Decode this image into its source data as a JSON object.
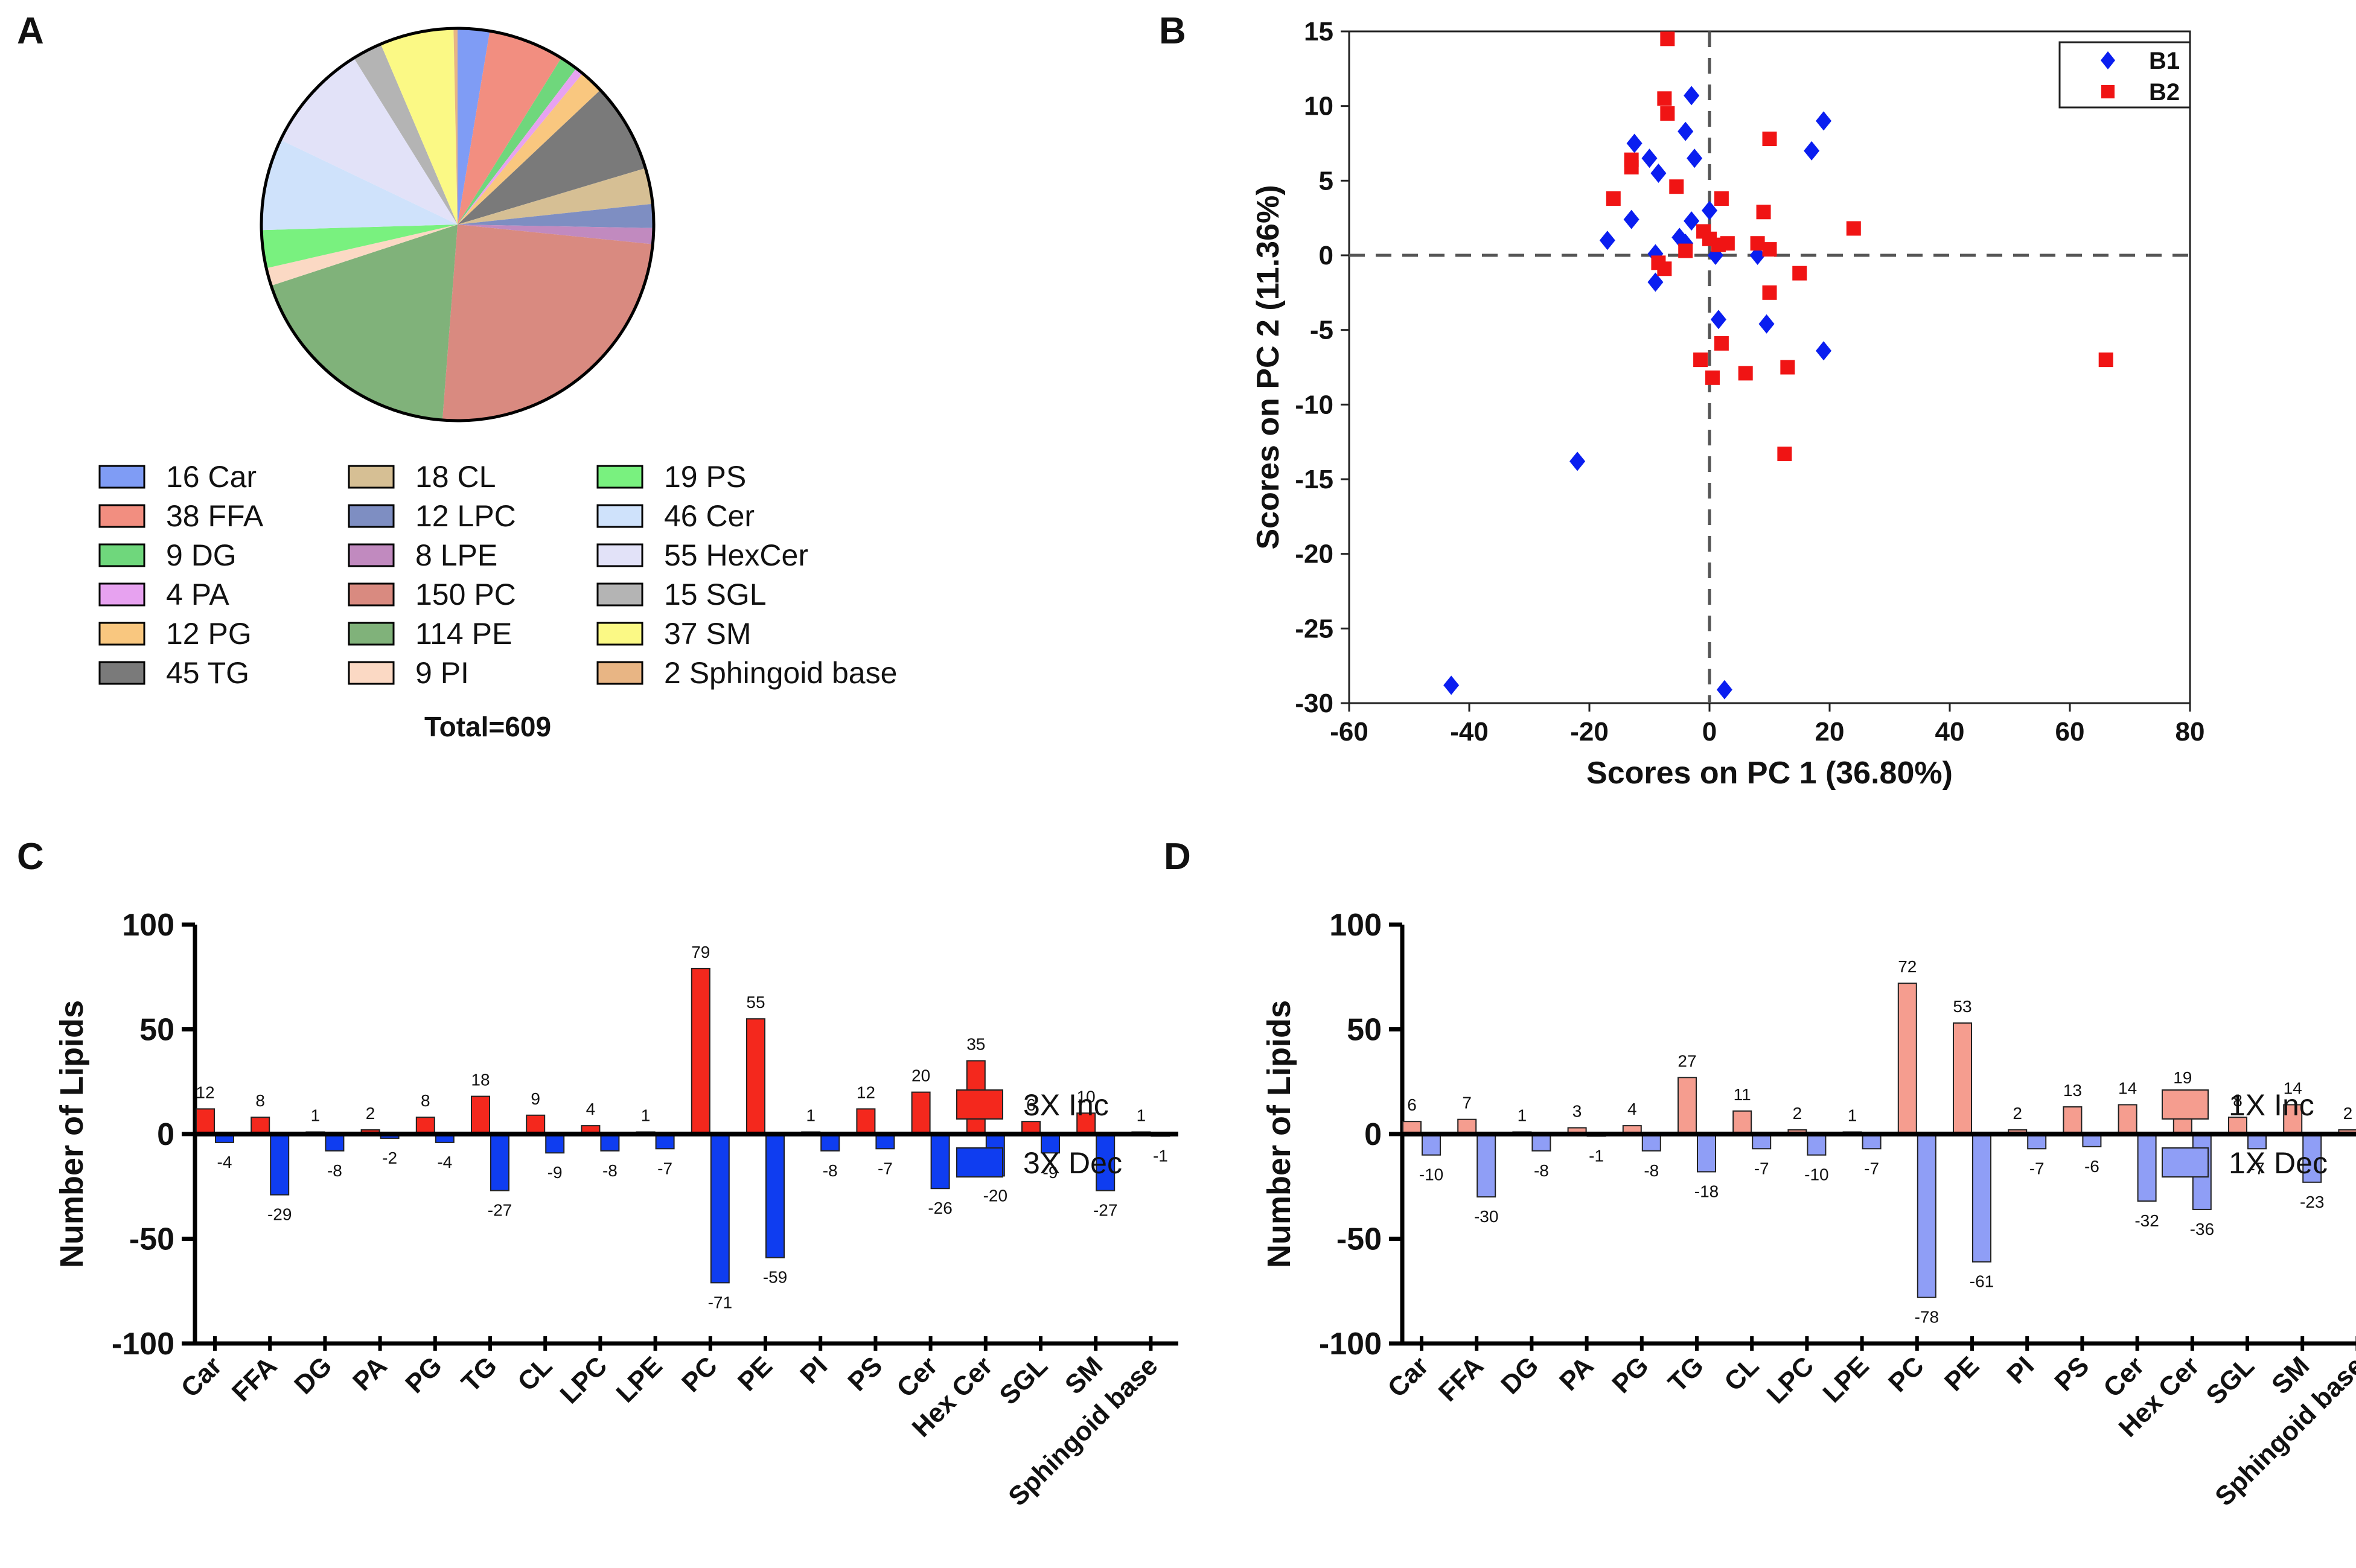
{
  "panels": {
    "a": "A",
    "b": "B",
    "c": "C",
    "d": "D"
  },
  "chart_data": [
    {
      "type": "pie",
      "panel": "A",
      "slices": [
        {
          "label": "16 Car",
          "value": 16,
          "color": "#7f9cf5"
        },
        {
          "label": "38 FFA",
          "value": 38,
          "color": "#f28e80"
        },
        {
          "label": "9 DG",
          "value": 9,
          "color": "#6fd77c"
        },
        {
          "label": "4 PA",
          "value": 4,
          "color": "#e7a2f0"
        },
        {
          "label": "12 PG",
          "value": 12,
          "color": "#f9c77f"
        },
        {
          "label": "45 TG",
          "value": 45,
          "color": "#7a7a7a"
        },
        {
          "label": "18 CL",
          "value": 18,
          "color": "#d6bf94"
        },
        {
          "label": "12 LPC",
          "value": 12,
          "color": "#7e8ec2"
        },
        {
          "label": "8 LPE",
          "value": 8,
          "color": "#c18abf"
        },
        {
          "label": "150 PC",
          "value": 150,
          "color": "#d98a80"
        },
        {
          "label": "114 PE",
          "value": 114,
          "color": "#80b27a"
        },
        {
          "label": "9 PI",
          "value": 9,
          "color": "#fbd9c4"
        },
        {
          "label": "19 PS",
          "value": 19,
          "color": "#79f17f"
        },
        {
          "label": "46 Cer",
          "value": 46,
          "color": "#cfe2fb"
        },
        {
          "label": "55 HexCer",
          "value": 55,
          "color": "#e2e2f8"
        },
        {
          "label": "15 SGL",
          "value": 15,
          "color": "#b4b4b4"
        },
        {
          "label": "37 SM",
          "value": 37,
          "color": "#fbf985"
        },
        {
          "label": "2 Sphingoid base",
          "value": 2,
          "color": "#e8b584"
        }
      ],
      "total_label": "Total=609"
    },
    {
      "type": "scatter",
      "panel": "B",
      "xlabel": "Scores on PC 1 (36.80%)",
      "ylabel": "Scores on PC 2 (11.36%)",
      "xlim": [
        -60,
        80
      ],
      "ylim": [
        -30,
        15
      ],
      "xticks": [
        -60,
        -40,
        -20,
        0,
        20,
        40,
        60,
        80
      ],
      "yticks": [
        -30,
        -25,
        -20,
        -15,
        -10,
        -5,
        0,
        5,
        10,
        15
      ],
      "series": [
        {
          "name": "B1",
          "color": "#0a1ef0",
          "marker": "diamond",
          "points": [
            [
              -43,
              -28.8
            ],
            [
              2.5,
              -29.1
            ],
            [
              -22,
              -13.8
            ],
            [
              -3,
              10.7
            ],
            [
              -4,
              8.3
            ],
            [
              19,
              9
            ],
            [
              17,
              7
            ],
            [
              -12.5,
              7.5
            ],
            [
              -10,
              6.5
            ],
            [
              -8.5,
              5.5
            ],
            [
              -2.5,
              6.5
            ],
            [
              -13,
              2.4
            ],
            [
              -3,
              2.3
            ],
            [
              0,
              3
            ],
            [
              -5,
              1.2
            ],
            [
              -4,
              0.8
            ],
            [
              -17,
              1
            ],
            [
              -9,
              0.1
            ],
            [
              1,
              0
            ],
            [
              8,
              0
            ],
            [
              -9,
              -1.8
            ],
            [
              1.5,
              -4.3
            ],
            [
              9.5,
              -4.6
            ],
            [
              19,
              -6.4
            ]
          ]
        },
        {
          "name": "B2",
          "color": "#f01414",
          "marker": "square",
          "points": [
            [
              -7,
              14.5
            ],
            [
              -7.5,
              10.5
            ],
            [
              -7,
              9.5
            ],
            [
              -13,
              6.4
            ],
            [
              -13,
              5.9
            ],
            [
              -5.5,
              4.6
            ],
            [
              -16,
              3.8
            ],
            [
              2,
              3.8
            ],
            [
              10,
              7.8
            ],
            [
              9,
              2.9
            ],
            [
              24,
              1.8
            ],
            [
              -1,
              1.6
            ],
            [
              0,
              1.1
            ],
            [
              1.5,
              0.7
            ],
            [
              3,
              0.8
            ],
            [
              -4,
              0.3
            ],
            [
              8,
              0.8
            ],
            [
              10,
              0.4
            ],
            [
              -8.5,
              -0.5
            ],
            [
              -7.5,
              -0.9
            ],
            [
              15,
              -1.2
            ],
            [
              10,
              -2.5
            ],
            [
              2,
              -5.9
            ],
            [
              -1.5,
              -7
            ],
            [
              0.5,
              -8.2
            ],
            [
              6,
              -7.9
            ],
            [
              13,
              -7.5
            ],
            [
              66,
              -7
            ],
            [
              12.5,
              -13.3
            ]
          ]
        }
      ],
      "legend_position": "top-right"
    },
    {
      "type": "bar",
      "panel": "C",
      "ylabel": "Number of Lipids",
      "ylim": [
        -100,
        100
      ],
      "yticks": [
        -100,
        -50,
        0,
        50,
        100
      ],
      "categories": [
        "Car",
        "FFA",
        "DG",
        "PA",
        "PG",
        "TG",
        "CL",
        "LPC",
        "LPE",
        "PC",
        "PE",
        "PI",
        "PS",
        "Cer",
        "Hex Cer",
        "SGL",
        "SM",
        "Sphingoid base"
      ],
      "series": [
        {
          "name": "3X Inc",
          "color": "#f4281d",
          "values": [
            12,
            8,
            1,
            2,
            8,
            18,
            9,
            4,
            1,
            79,
            55,
            1,
            12,
            20,
            35,
            6,
            10,
            1
          ]
        },
        {
          "name": "3X Dec",
          "color": "#0f3df0",
          "values": [
            -4,
            -29,
            -8,
            -2,
            -4,
            -27,
            -9,
            -8,
            -7,
            -71,
            -59,
            -8,
            -7,
            -26,
            -20,
            -9,
            -27,
            -1
          ]
        }
      ]
    },
    {
      "type": "bar",
      "panel": "D",
      "ylabel": "Number of Lipids",
      "ylim": [
        -100,
        100
      ],
      "yticks": [
        -100,
        -50,
        0,
        50,
        100
      ],
      "categories": [
        "Car",
        "FFA",
        "DG",
        "PA",
        "PG",
        "TG",
        "CL",
        "LPC",
        "LPE",
        "PC",
        "PE",
        "PI",
        "PS",
        "Cer",
        "Hex Cer",
        "SGL",
        "SM",
        "Sphingoid base"
      ],
      "series": [
        {
          "name": "1X Inc",
          "color": "#f59d8f",
          "values": [
            6,
            7,
            1,
            3,
            4,
            27,
            11,
            2,
            1,
            72,
            53,
            2,
            13,
            14,
            19,
            8,
            14,
            2
          ]
        },
        {
          "name": "1X Dec",
          "color": "#8f9ef6",
          "values": [
            -10,
            -30,
            -8,
            -1,
            -8,
            -18,
            -7,
            -10,
            -7,
            -78,
            -61,
            -7,
            -6,
            -32,
            -36,
            -7,
            -23,
            0
          ]
        }
      ]
    }
  ]
}
